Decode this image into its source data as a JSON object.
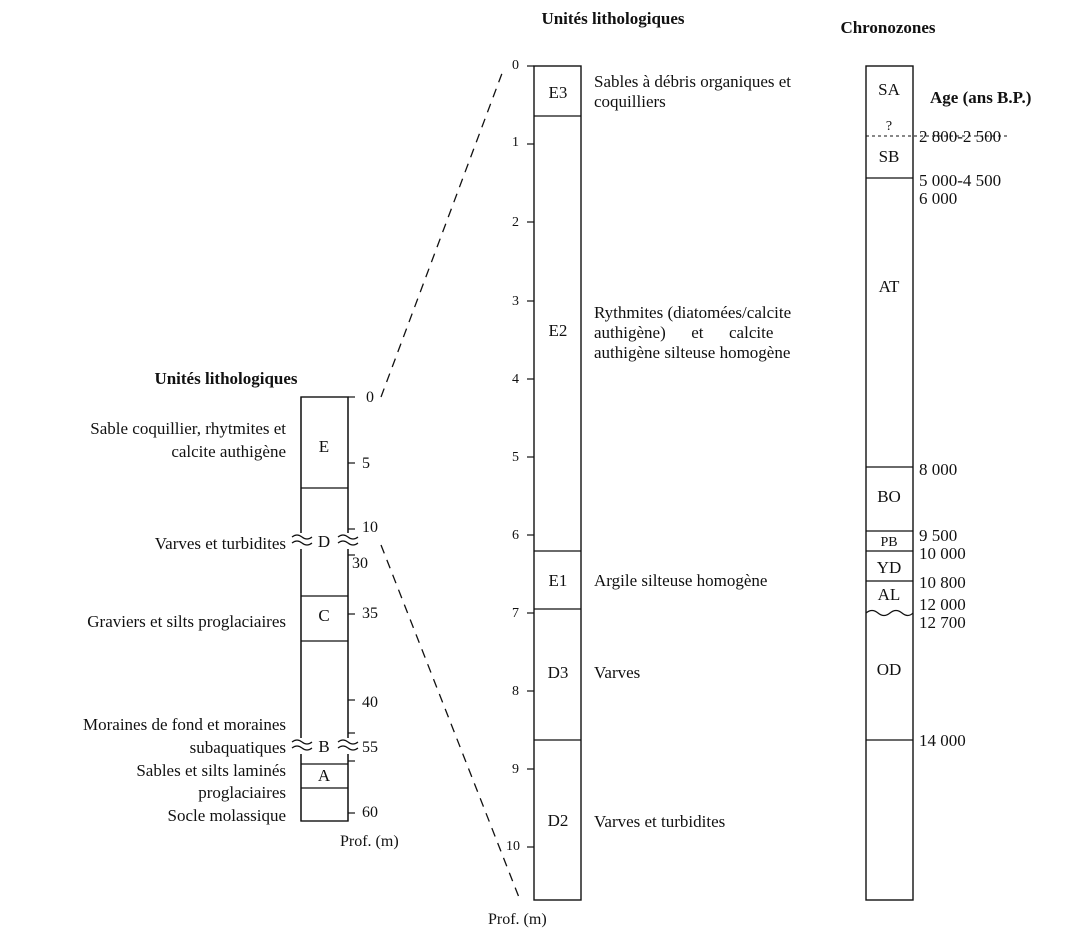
{
  "left_section": {
    "header": "Unités lithologiques",
    "depth_ticks": [
      "0",
      "5",
      "10",
      "30",
      "35",
      "40",
      "55",
      "60"
    ],
    "axis_label": "Prof. (m)",
    "units": [
      {
        "code": "E",
        "description": [
          "Sable coquillier, rhytmites et",
          "calcite authigène"
        ]
      },
      {
        "code": "D",
        "description": [
          "Varves et turbidites"
        ]
      },
      {
        "code": "C",
        "description": [
          "Graviers et silts proglaciaires"
        ]
      },
      {
        "code": "B",
        "description": [
          "Moraines de fond et moraines",
          "subaquatiques"
        ]
      },
      {
        "code": "A",
        "description": [
          "Sables et silts laminés",
          "proglaciaires"
        ]
      }
    ],
    "base_label": "Socle molassique"
  },
  "middle_section": {
    "header": "Unités lithologiques",
    "depth_ticks": [
      "0",
      "1",
      "2",
      "3",
      "4",
      "5",
      "6",
      "7",
      "8",
      "9",
      "10"
    ],
    "axis_label": "Prof. (m)",
    "units": [
      {
        "code": "E3",
        "description": [
          "Sables à débris organiques et",
          "coquilliers"
        ]
      },
      {
        "code": "E2",
        "description": [
          "Rythmites (diatomées/calcite",
          "authigène)      et      calcite",
          "authigène silteuse homogène"
        ]
      },
      {
        "code": "E1",
        "description": [
          "Argile silteuse homogène"
        ]
      },
      {
        "code": "D3",
        "description": [
          "Varves"
        ]
      },
      {
        "code": "D2",
        "description": [
          "Varves et turbidites"
        ]
      }
    ]
  },
  "right_section": {
    "header": "Chronozones",
    "age_header": "Age (ans B.P.)",
    "zones": [
      "SA",
      "?",
      "SB",
      "AT",
      "BO",
      "PB",
      "YD",
      "AL",
      "OD"
    ],
    "ages": [
      "2 800-2 500",
      "5 000-4 500",
      "6 000",
      "8 000",
      "9 500",
      "10 000",
      "10 800",
      "12 000",
      "12 700",
      "14 000"
    ]
  }
}
